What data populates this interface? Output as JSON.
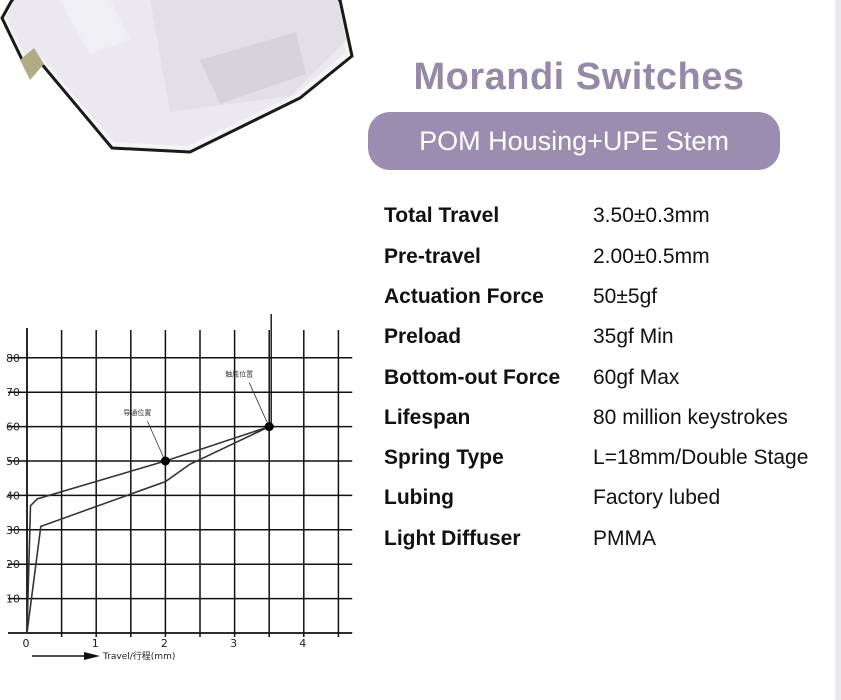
{
  "header": {
    "title": "Morandi Switches",
    "subtitle": "POM Housing+UPE Stem"
  },
  "specs": [
    {
      "label": "Total Travel",
      "value": "3.50±0.3mm"
    },
    {
      "label": "Pre-travel",
      "value": "2.00±0.5mm"
    },
    {
      "label": "Actuation Force",
      "value": "50±5gf"
    },
    {
      "label": "Preload",
      "value": "35gf Min"
    },
    {
      "label": "Bottom-out Force",
      "value": "60gf Max"
    },
    {
      "label": "Lifespan",
      "value": "80 million keystrokes"
    },
    {
      "label": "Spring Type",
      "value": "L=18mm/Double Stage"
    },
    {
      "label": "Lubing",
      "value": "Factory lubed"
    },
    {
      "label": "Light Diffuser",
      "value": "PMMA"
    }
  ],
  "colors": {
    "accent": "#9a8db0",
    "title": "#9689a8",
    "text": "#111111"
  },
  "chart_data": {
    "type": "line",
    "xlabel": "Travel/行程(mm)",
    "ylabel": "",
    "xlim": [
      0,
      4.7
    ],
    "ylim": [
      0,
      85
    ],
    "x_ticks": [
      "0",
      "1",
      "2",
      "3",
      "4"
    ],
    "y_ticks": [
      "10",
      "20",
      "30",
      "40",
      "50",
      "60",
      "70",
      "80"
    ],
    "grid": true,
    "series": [
      {
        "x": [
          0,
          0.05,
          0.15,
          2.0,
          3.5
        ],
        "y": [
          0,
          37,
          39,
          50,
          60
        ]
      },
      {
        "x": [
          0,
          0.2,
          2.0,
          2.35,
          3.5
        ],
        "y": [
          0,
          31,
          44,
          49,
          60
        ]
      }
    ],
    "annotations": [
      {
        "text": "导通位置",
        "x": 2.0,
        "y": 50
      },
      {
        "text": "触底位置",
        "x": 3.5,
        "y": 60
      }
    ]
  }
}
